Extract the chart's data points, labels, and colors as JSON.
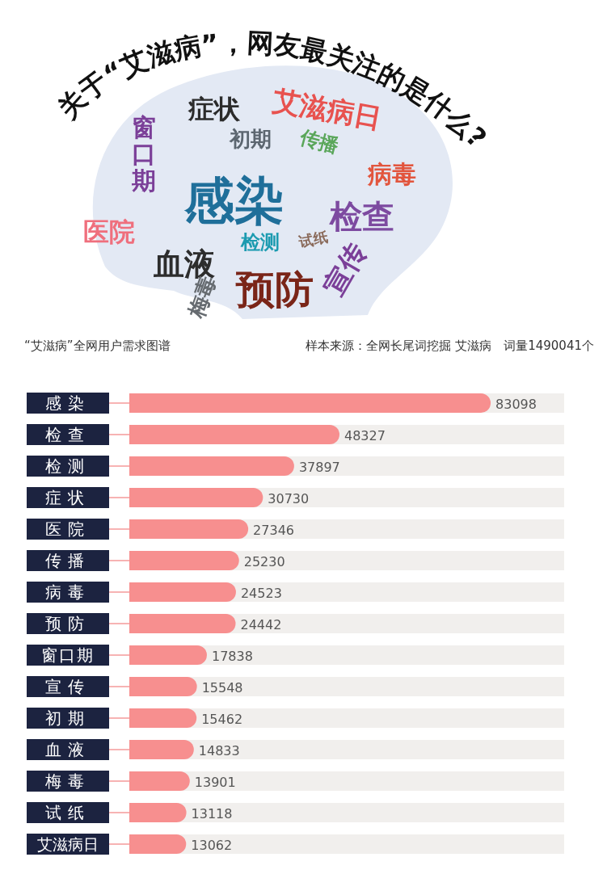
{
  "chart_data": [
    {
      "type": "other",
      "title": "关于“艾滋病”，网友最关注的是什么?",
      "categories": [
        "症状",
        "艾滋病日",
        "窗口期",
        "初期",
        "传播",
        "感染",
        "病毒",
        "检查",
        "医院",
        "检测",
        "试纸",
        "血液",
        "预防",
        "宣传",
        "梅毒"
      ],
      "colors": [
        "#2b2b2b",
        "#e8524f",
        "#7b3f98",
        "#5c6670",
        "#5aa65a",
        "#1f6f9a",
        "#e2553d",
        "#7d4aa0",
        "#ef6f7d",
        "#1c9bb0",
        "#8a6a5a",
        "#2d2d2d",
        "#7a2518",
        "#7b3f98",
        "#666b70"
      ]
    },
    {
      "type": "bar",
      "orientation": "horizontal",
      "data_labels": true,
      "xlim": [
        0,
        100000
      ],
      "color": "#f78f8f",
      "categories": [
        "感染",
        "检查",
        "检测",
        "症状",
        "医院",
        "传播",
        "病毒",
        "预防",
        "窗口期",
        "宣传",
        "初期",
        "血液",
        "梅毒",
        "试纸",
        "艾滋病日"
      ],
      "values": [
        83098,
        48327,
        37897,
        30730,
        27346,
        25230,
        24523,
        24442,
        17838,
        15548,
        15462,
        14833,
        13901,
        13118,
        13062
      ],
      "annotations": [
        "“艾滋病”全网用户需求图谱",
        "样本来源：全网长尾词挖掘 艾滋病　词量1490041个"
      ]
    }
  ]
}
